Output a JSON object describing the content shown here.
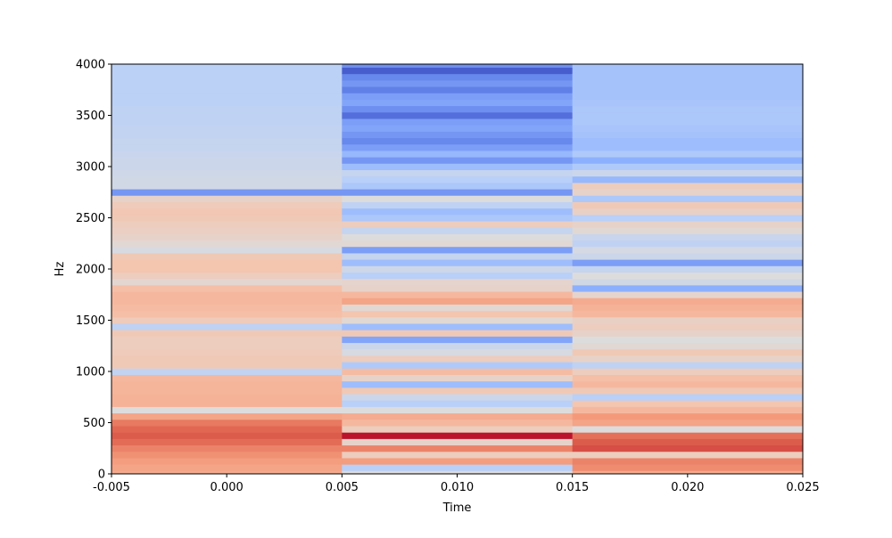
{
  "chart_data": {
    "type": "heatmap",
    "title": "",
    "xlabel": "Time",
    "ylabel": "Hz",
    "xlim": [
      -0.005,
      0.025
    ],
    "ylim": [
      0,
      4000
    ],
    "xticks": [
      {
        "value": -0.005,
        "label": "-0.005"
      },
      {
        "value": 0.0,
        "label": "0.000"
      },
      {
        "value": 0.005,
        "label": "0.005"
      },
      {
        "value": 0.01,
        "label": "0.010"
      },
      {
        "value": 0.015,
        "label": "0.015"
      },
      {
        "value": 0.02,
        "label": "0.020"
      },
      {
        "value": 0.025,
        "label": "0.025"
      }
    ],
    "yticks": [
      {
        "value": 0,
        "label": "0"
      },
      {
        "value": 500,
        "label": "500"
      },
      {
        "value": 1000,
        "label": "1000"
      },
      {
        "value": 1500,
        "label": "1500"
      },
      {
        "value": 2000,
        "label": "2000"
      },
      {
        "value": 2500,
        "label": "2500"
      },
      {
        "value": 3000,
        "label": "3000"
      },
      {
        "value": 3500,
        "label": "3500"
      },
      {
        "value": 4000,
        "label": "4000"
      }
    ],
    "colormap": "coolwarm",
    "grid": false,
    "freq_step_hz": 62.5,
    "frames": [
      {
        "t_start": -0.005,
        "t_end": 0.005,
        "values": [
          0.7,
          0.72,
          0.74,
          0.77,
          0.8,
          0.85,
          0.88,
          0.86,
          0.82,
          0.72,
          0.5,
          0.68,
          0.68,
          0.67,
          0.67,
          0.66,
          0.41,
          0.6,
          0.6,
          0.59,
          0.58,
          0.58,
          0.6,
          0.4,
          0.59,
          0.64,
          0.65,
          0.66,
          0.66,
          0.64,
          0.53,
          0.58,
          0.62,
          0.62,
          0.6,
          0.48,
          0.52,
          0.55,
          0.57,
          0.58,
          0.6,
          0.61,
          0.59,
          0.55,
          0.18,
          0.46,
          0.46,
          0.45,
          0.44,
          0.44,
          0.43,
          0.42,
          0.42,
          0.41,
          0.41,
          0.4,
          0.4,
          0.4,
          0.39,
          0.39,
          0.39,
          0.39,
          0.39,
          0.39,
          0.39
        ]
      },
      {
        "t_start": 0.005,
        "t_end": 0.015,
        "values": [
          0.5,
          0.38,
          0.74,
          0.58,
          0.8,
          0.55,
          0.98,
          0.58,
          0.66,
          0.7,
          0.5,
          0.38,
          0.44,
          0.6,
          0.3,
          0.55,
          0.65,
          0.35,
          0.58,
          0.48,
          0.44,
          0.22,
          0.6,
          0.3,
          0.52,
          0.62,
          0.52,
          0.72,
          0.66,
          0.55,
          0.54,
          0.38,
          0.45,
          0.3,
          0.42,
          0.2,
          0.52,
          0.5,
          0.42,
          0.58,
          0.34,
          0.3,
          0.4,
          0.5,
          0.18,
          0.34,
          0.38,
          0.42,
          0.3,
          0.18,
          0.28,
          0.2,
          0.14,
          0.18,
          0.22,
          0.2,
          0.08,
          0.16,
          0.22,
          0.2,
          0.12,
          0.18,
          0.14,
          0.04,
          0.16
        ]
      },
      {
        "t_start": 0.015,
        "t_end": 0.025,
        "values": [
          0.7,
          0.78,
          0.8,
          0.58,
          0.9,
          0.88,
          0.84,
          0.5,
          0.72,
          0.75,
          0.66,
          0.62,
          0.38,
          0.6,
          0.66,
          0.64,
          0.58,
          0.4,
          0.55,
          0.6,
          0.52,
          0.5,
          0.55,
          0.58,
          0.56,
          0.66,
          0.68,
          0.7,
          0.54,
          0.25,
          0.46,
          0.5,
          0.42,
          0.2,
          0.44,
          0.47,
          0.4,
          0.43,
          0.52,
          0.55,
          0.38,
          0.56,
          0.6,
          0.34,
          0.55,
          0.58,
          0.28,
          0.44,
          0.35,
          0.25,
          0.35,
          0.3,
          0.3,
          0.32,
          0.33,
          0.34,
          0.34,
          0.34,
          0.33,
          0.32,
          0.32,
          0.32,
          0.32,
          0.32,
          0.32
        ]
      }
    ]
  }
}
